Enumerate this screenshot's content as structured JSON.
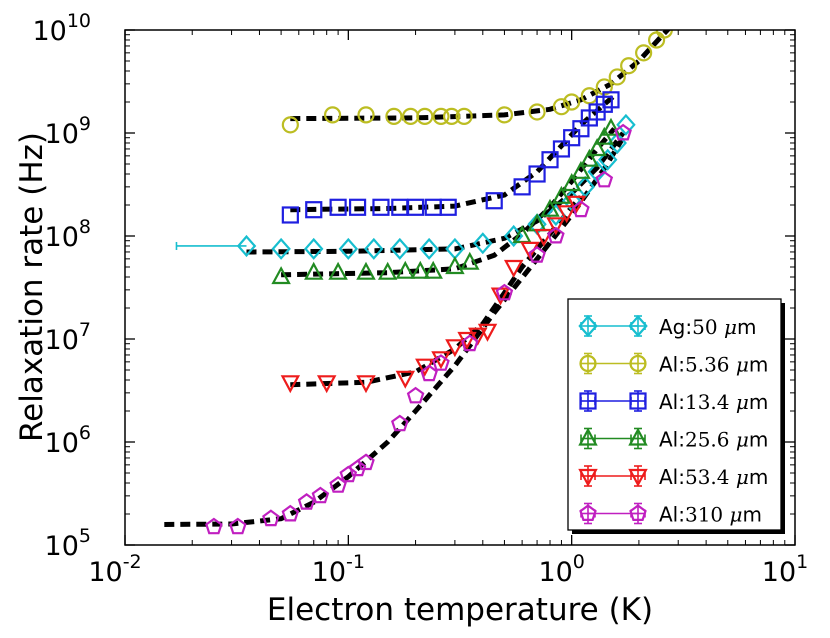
{
  "chart_data": {
    "type": "scatter",
    "title": "",
    "xlabel": "Electron temperature (K)",
    "ylabel": "Relaxation rate (Hz)",
    "xscale": "log",
    "yscale": "log",
    "xlim": [
      0.01,
      10
    ],
    "ylim": [
      100000,
      10000000000
    ],
    "x_tick_labels": [
      {
        "base": "10",
        "exp": "-2"
      },
      {
        "base": "10",
        "exp": "-1"
      },
      {
        "base": "10",
        "exp": "0"
      },
      {
        "base": "10",
        "exp": "1"
      }
    ],
    "y_tick_labels": [
      {
        "base": "10",
        "exp": "5"
      },
      {
        "base": "10",
        "exp": "6"
      },
      {
        "base": "10",
        "exp": "7"
      },
      {
        "base": "10",
        "exp": "8"
      },
      {
        "base": "10",
        "exp": "9"
      },
      {
        "base": "10",
        "exp": "10"
      }
    ],
    "legend_position": "lower-right",
    "series": [
      {
        "name": "Ag:50 μm",
        "prefix": "Ag:",
        "value": "50",
        "unit": "μm",
        "color": "#17becf",
        "marker": "diamond",
        "points": [
          [
            0.035,
            80000000.0
          ],
          [
            0.05,
            75000000.0
          ],
          [
            0.07,
            75000000.0
          ],
          [
            0.1,
            75000000.0
          ],
          [
            0.13,
            75000000.0
          ],
          [
            0.17,
            75000000.0
          ],
          [
            0.23,
            75000000.0
          ],
          [
            0.3,
            75000000.0
          ],
          [
            0.4,
            85000000.0
          ],
          [
            0.55,
            100000000.0
          ],
          [
            0.7,
            130000000.0
          ],
          [
            0.85,
            160000000.0
          ],
          [
            1.0,
            220000000.0
          ],
          [
            1.15,
            300000000.0
          ],
          [
            1.3,
            420000000.0
          ],
          [
            1.45,
            550000000.0
          ],
          [
            1.6,
            800000000.0
          ],
          [
            1.75,
            1200000000.0
          ]
        ],
        "xerr_lo": [
          0.017
        ],
        "fit": [
          [
            0.035,
            70000000.0
          ],
          [
            0.1,
            71000000.0
          ],
          [
            0.3,
            75000000.0
          ],
          [
            0.5,
            95000000.0
          ],
          [
            0.7,
            140000000.0
          ],
          [
            1.0,
            260000000.0
          ],
          [
            1.3,
            460000000.0
          ],
          [
            1.7,
            1000000000.0
          ]
        ]
      },
      {
        "name": "Al:5.36 μm",
        "prefix": "Al:",
        "value": "5.36",
        "unit": "μm",
        "color": "#bcbd22",
        "marker": "circle",
        "points": [
          [
            0.055,
            1200000000.0
          ],
          [
            0.085,
            1500000000.0
          ],
          [
            0.12,
            1500000000.0
          ],
          [
            0.16,
            1450000000.0
          ],
          [
            0.19,
            1450000000.0
          ],
          [
            0.22,
            1450000000.0
          ],
          [
            0.26,
            1450000000.0
          ],
          [
            0.29,
            1450000000.0
          ],
          [
            0.33,
            1450000000.0
          ],
          [
            0.5,
            1500000000.0
          ],
          [
            0.7,
            1600000000.0
          ],
          [
            0.9,
            1800000000.0
          ],
          [
            1.0,
            2000000000.0
          ],
          [
            1.2,
            2300000000.0
          ],
          [
            1.4,
            2800000000.0
          ],
          [
            1.6,
            3500000000.0
          ],
          [
            1.8,
            4500000000.0
          ],
          [
            2.1,
            6000000000.0
          ],
          [
            2.4,
            8000000000.0
          ],
          [
            2.6,
            10000000000.0
          ]
        ],
        "fit": [
          [
            0.055,
            1380000000.0
          ],
          [
            0.2,
            1400000000.0
          ],
          [
            0.5,
            1500000000.0
          ],
          [
            0.8,
            1700000000.0
          ],
          [
            1.1,
            2100000000.0
          ],
          [
            1.5,
            3000000000.0
          ],
          [
            2.0,
            5000000000.0
          ],
          [
            2.5,
            8500000000.0
          ],
          [
            2.8,
            11000000000.0
          ]
        ]
      },
      {
        "name": "Al:13.4 μm",
        "prefix": "Al:",
        "value": "13.4",
        "unit": "μm",
        "color": "#1f1fe0",
        "marker": "square",
        "points": [
          [
            0.055,
            160000000.0
          ],
          [
            0.07,
            180000000.0
          ],
          [
            0.09,
            190000000.0
          ],
          [
            0.11,
            190000000.0
          ],
          [
            0.14,
            190000000.0
          ],
          [
            0.17,
            190000000.0
          ],
          [
            0.2,
            190000000.0
          ],
          [
            0.24,
            190000000.0
          ],
          [
            0.28,
            190000000.0
          ],
          [
            0.45,
            220000000.0
          ],
          [
            0.6,
            300000000.0
          ],
          [
            0.7,
            400000000.0
          ],
          [
            0.8,
            550000000.0
          ],
          [
            0.9,
            700000000.0
          ],
          [
            1.0,
            900000000.0
          ],
          [
            1.1,
            1100000000.0
          ],
          [
            1.2,
            1400000000.0
          ],
          [
            1.3,
            1600000000.0
          ],
          [
            1.4,
            1900000000.0
          ],
          [
            1.5,
            2100000000.0
          ]
        ],
        "fit": [
          [
            0.055,
            180000000.0
          ],
          [
            0.15,
            185000000.0
          ],
          [
            0.3,
            195000000.0
          ],
          [
            0.5,
            250000000.0
          ],
          [
            0.7,
            420000000.0
          ],
          [
            0.9,
            750000000.0
          ],
          [
            1.1,
            1200000000.0
          ],
          [
            1.4,
            1900000000.0
          ],
          [
            1.55,
            2300000000.0
          ]
        ]
      },
      {
        "name": "Al:25.6 μm",
        "prefix": "Al:",
        "value": "25.6",
        "unit": "μm",
        "color": "#228b22",
        "marker": "triangle-up",
        "points": [
          [
            0.05,
            40000000.0
          ],
          [
            0.07,
            44000000.0
          ],
          [
            0.09,
            44000000.0
          ],
          [
            0.12,
            44000000.0
          ],
          [
            0.15,
            44000000.0
          ],
          [
            0.18,
            45000000.0
          ],
          [
            0.21,
            45000000.0
          ],
          [
            0.24,
            45000000.0
          ],
          [
            0.3,
            50000000.0
          ],
          [
            0.35,
            55000000.0
          ],
          [
            0.6,
            100000000.0
          ],
          [
            0.7,
            130000000.0
          ],
          [
            0.8,
            180000000.0
          ],
          [
            0.9,
            240000000.0
          ],
          [
            1.0,
            320000000.0
          ],
          [
            1.1,
            420000000.0
          ],
          [
            1.2,
            550000000.0
          ],
          [
            1.3,
            700000000.0
          ],
          [
            1.4,
            900000000.0
          ],
          [
            1.5,
            1100000000.0
          ]
        ],
        "fit": [
          [
            0.05,
            42000000.0
          ],
          [
            0.15,
            44000000.0
          ],
          [
            0.3,
            48000000.0
          ],
          [
            0.45,
            65000000.0
          ],
          [
            0.6,
            105000000.0
          ],
          [
            0.8,
            190000000.0
          ],
          [
            1.0,
            340000000.0
          ],
          [
            1.3,
            700000000.0
          ],
          [
            1.55,
            1100000000.0
          ]
        ]
      },
      {
        "name": "Al:53.4 μm",
        "prefix": "Al:",
        "value": "53.4",
        "unit": "μm",
        "color": "#ee1c1c",
        "marker": "triangle-down",
        "points": [
          [
            0.055,
            3800000.0
          ],
          [
            0.08,
            3800000.0
          ],
          [
            0.12,
            3800000.0
          ],
          [
            0.18,
            4200000.0
          ],
          [
            0.22,
            5500000.0
          ],
          [
            0.26,
            6500000.0
          ],
          [
            0.3,
            8500000.0
          ],
          [
            0.34,
            10000000.0
          ],
          [
            0.38,
            11000000.0
          ],
          [
            0.42,
            12000000.0
          ],
          [
            0.48,
            27000000.0
          ],
          [
            0.55,
            50000000.0
          ],
          [
            0.65,
            75000000.0
          ],
          [
            0.75,
            100000000.0
          ],
          [
            0.85,
            130000000.0
          ],
          [
            0.95,
            170000000.0
          ],
          [
            1.05,
            210000000.0
          ]
        ],
        "fit": [
          [
            0.055,
            3600000.0
          ],
          [
            0.12,
            3800000.0
          ],
          [
            0.2,
            4800000.0
          ],
          [
            0.3,
            8000000.0
          ],
          [
            0.4,
            14000000.0
          ],
          [
            0.5,
            28000000.0
          ],
          [
            0.6,
            50000000.0
          ],
          [
            0.8,
            105000000.0
          ],
          [
            1.0,
            190000000.0
          ],
          [
            1.1,
            240000000.0
          ]
        ]
      },
      {
        "name": "Al:310 μm",
        "prefix": "Al:",
        "value": "310",
        "unit": "μm",
        "color": "#c01fc0",
        "marker": "pentagon",
        "points": [
          [
            0.025,
            150000.0
          ],
          [
            0.032,
            150000.0
          ],
          [
            0.045,
            180000.0
          ],
          [
            0.055,
            200000.0
          ],
          [
            0.065,
            260000.0
          ],
          [
            0.075,
            300000.0
          ],
          [
            0.09,
            380000.0
          ],
          [
            0.1,
            480000.0
          ],
          [
            0.11,
            550000.0
          ],
          [
            0.12,
            630000.0
          ],
          [
            0.17,
            1500000.0
          ],
          [
            0.2,
            2800000.0
          ],
          [
            0.23,
            4600000.0
          ],
          [
            0.26,
            5800000.0
          ],
          [
            0.35,
            9000000.0
          ],
          [
            0.5,
            28000000.0
          ],
          [
            0.7,
            65000000.0
          ],
          [
            0.85,
            100000000.0
          ],
          [
            1.1,
            180000000.0
          ],
          [
            1.4,
            350000000.0
          ],
          [
            1.7,
            1000000000.0
          ]
        ],
        "fit": [
          [
            0.015,
            158000.0
          ],
          [
            0.03,
            160000.0
          ],
          [
            0.05,
            180000.0
          ],
          [
            0.07,
            260000.0
          ],
          [
            0.1,
            460000.0
          ],
          [
            0.15,
            1000000.0
          ],
          [
            0.2,
            2000000.0
          ],
          [
            0.3,
            5500000.0
          ],
          [
            0.45,
            18000000.0
          ],
          [
            0.7,
            60000000.0
          ],
          [
            1.0,
            160000000.0
          ],
          [
            1.4,
            450000000.0
          ],
          [
            1.7,
            900000000.0
          ]
        ]
      }
    ]
  }
}
